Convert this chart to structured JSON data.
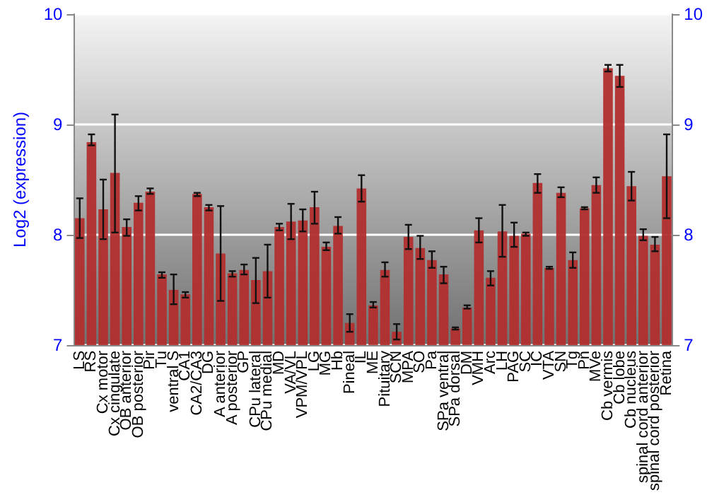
{
  "chart_data": {
    "type": "bar",
    "ylabel": "Log2 (expression)",
    "categories": [
      "LS",
      "RS",
      "Cx motor",
      "Cx cingulate",
      "OB anterior",
      "OB posterior",
      "Pir",
      "Tu",
      "ventral S",
      "CA1",
      "CA2/CA3",
      "DG",
      "A anterior",
      "A posterior",
      "GP",
      "CPu lateral",
      "CPu medial",
      "MD",
      "VA/VL",
      "VPM/VPL",
      "LG",
      "MG",
      "Hb",
      "Pineal",
      "IL",
      "ME",
      "Pituitary",
      "SCN",
      "MPA",
      "SO",
      "Pa",
      "SPa ventral",
      "SPa dorsal",
      "DM",
      "VMH",
      "Arc",
      "LH",
      "PAG",
      "SC",
      "IC",
      "VTA",
      "SN",
      "Tg",
      "Pn",
      "MVe",
      "Cb vermis",
      "Cb lobe",
      "Cb nucleus",
      "spinal cord anterior",
      "spinal cord posterior",
      "Retina"
    ],
    "values": [
      8.15,
      8.84,
      8.23,
      8.56,
      8.07,
      8.29,
      8.39,
      7.64,
      7.5,
      7.46,
      8.37,
      8.25,
      7.83,
      7.65,
      7.68,
      7.59,
      7.67,
      8.07,
      8.12,
      8.13,
      8.25,
      7.89,
      8.08,
      7.2,
      8.42,
      7.36,
      7.68,
      7.12,
      7.98,
      7.88,
      7.77,
      7.64,
      7.15,
      7.34,
      8.04,
      7.61,
      8.03,
      7.99,
      8.01,
      8.47,
      7.7,
      8.38,
      7.77,
      8.24,
      8.45,
      9.51,
      9.44,
      8.44,
      7.99,
      7.91,
      8.53
    ],
    "errors": [
      [
        7.97,
        8.33
      ],
      [
        8.81,
        8.91
      ],
      [
        7.96,
        8.5
      ],
      [
        8.02,
        9.09
      ],
      [
        7.99,
        8.14
      ],
      [
        8.22,
        8.35
      ],
      [
        8.37,
        8.42
      ],
      [
        7.61,
        7.66
      ],
      [
        7.37,
        7.64
      ],
      [
        7.43,
        7.48
      ],
      [
        8.35,
        8.38
      ],
      [
        8.22,
        8.27
      ],
      [
        7.4,
        8.26
      ],
      [
        7.62,
        7.67
      ],
      [
        7.64,
        7.73
      ],
      [
        7.38,
        7.79
      ],
      [
        7.43,
        7.91
      ],
      [
        8.04,
        8.1
      ],
      [
        7.96,
        8.28
      ],
      [
        8.03,
        8.23
      ],
      [
        8.1,
        8.39
      ],
      [
        7.86,
        7.93
      ],
      [
        8.01,
        8.16
      ],
      [
        7.12,
        7.28
      ],
      [
        8.3,
        8.54
      ],
      [
        7.34,
        7.39
      ],
      [
        7.62,
        7.75
      ],
      [
        7.05,
        7.19
      ],
      [
        7.87,
        8.09
      ],
      [
        7.78,
        7.99
      ],
      [
        7.7,
        7.85
      ],
      [
        7.56,
        7.71
      ],
      [
        7.14,
        7.16
      ],
      [
        7.33,
        7.36
      ],
      [
        7.93,
        8.15
      ],
      [
        7.54,
        7.67
      ],
      [
        7.8,
        8.27
      ],
      [
        7.89,
        8.11
      ],
      [
        7.99,
        8.02
      ],
      [
        8.38,
        8.55
      ],
      [
        7.69,
        7.71
      ],
      [
        8.34,
        8.43
      ],
      [
        7.7,
        7.84
      ],
      [
        8.23,
        8.25
      ],
      [
        8.38,
        8.52
      ],
      [
        9.48,
        9.54
      ],
      [
        9.34,
        9.54
      ],
      [
        8.31,
        8.57
      ],
      [
        7.95,
        8.05
      ],
      [
        7.85,
        7.98
      ],
      [
        8.15,
        8.91
      ]
    ],
    "color": "#b22f2f",
    "ylim": [
      7,
      10
    ],
    "yticks": [
      7,
      8,
      9,
      10
    ],
    "y2lim": [
      7,
      10
    ],
    "y2ticks": [
      7,
      8,
      9,
      10
    ],
    "grid": "y"
  }
}
